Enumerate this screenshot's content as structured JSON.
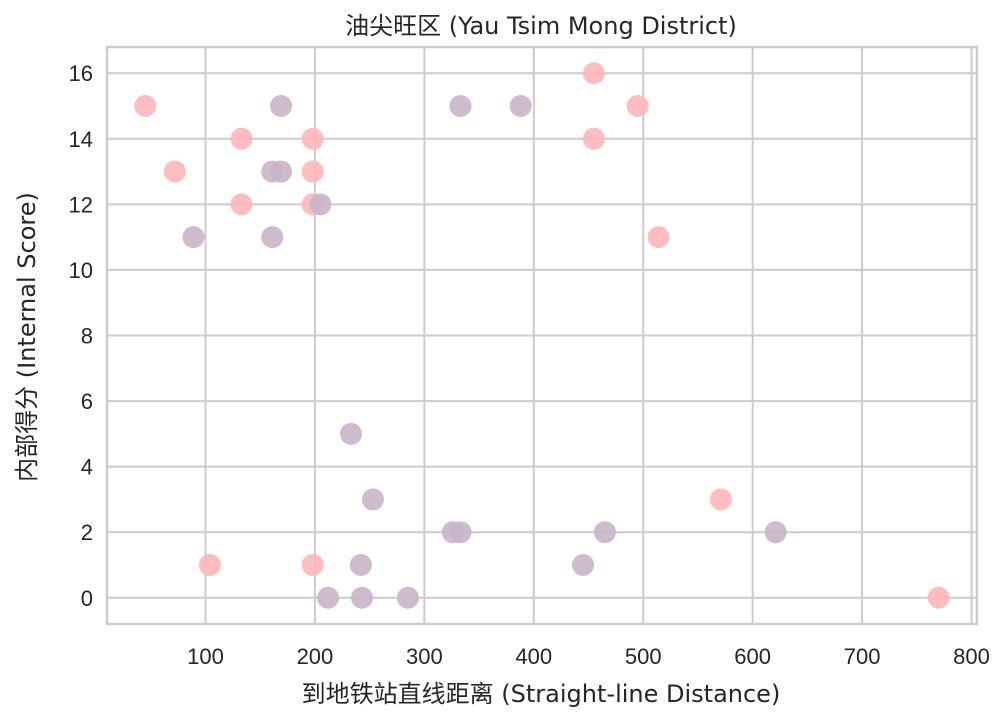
{
  "chart_data": {
    "type": "scatter",
    "title": "油尖旺区 (Yau Tsim Mong District)",
    "xlabel": "到地铁站直线距离 (Straight-line Distance)",
    "ylabel": "内部得分 (Internal Score)",
    "xlim": [
      10,
      805
    ],
    "ylim": [
      -0.8,
      16.8
    ],
    "xticks": [
      100,
      200,
      300,
      400,
      500,
      600,
      700,
      800
    ],
    "yticks": [
      0,
      2,
      4,
      6,
      8,
      10,
      12,
      14,
      16
    ],
    "grid": true,
    "colors": {
      "pink": "#ffb6b9",
      "purple": "#c9b4c9"
    },
    "points": [
      {
        "x": 45,
        "y": 15,
        "color": "pink"
      },
      {
        "x": 72,
        "y": 13,
        "color": "pink"
      },
      {
        "x": 133,
        "y": 14,
        "color": "pink"
      },
      {
        "x": 133,
        "y": 12,
        "color": "pink"
      },
      {
        "x": 198,
        "y": 14,
        "color": "pink"
      },
      {
        "x": 198,
        "y": 13,
        "color": "pink"
      },
      {
        "x": 198,
        "y": 12,
        "color": "pink"
      },
      {
        "x": 104,
        "y": 1,
        "color": "pink"
      },
      {
        "x": 198,
        "y": 1,
        "color": "pink"
      },
      {
        "x": 455,
        "y": 16,
        "color": "pink"
      },
      {
        "x": 455,
        "y": 14,
        "color": "pink"
      },
      {
        "x": 495,
        "y": 15,
        "color": "pink"
      },
      {
        "x": 514,
        "y": 11,
        "color": "pink"
      },
      {
        "x": 571,
        "y": 3,
        "color": "pink"
      },
      {
        "x": 770,
        "y": 0,
        "color": "pink"
      },
      {
        "x": 89,
        "y": 11,
        "color": "purple"
      },
      {
        "x": 161,
        "y": 13,
        "color": "purple"
      },
      {
        "x": 169,
        "y": 13,
        "color": "purple"
      },
      {
        "x": 169,
        "y": 15,
        "color": "purple"
      },
      {
        "x": 161,
        "y": 11,
        "color": "purple"
      },
      {
        "x": 205,
        "y": 12,
        "color": "purple"
      },
      {
        "x": 333,
        "y": 15,
        "color": "purple"
      },
      {
        "x": 388,
        "y": 15,
        "color": "purple"
      },
      {
        "x": 233,
        "y": 5,
        "color": "purple"
      },
      {
        "x": 253,
        "y": 3,
        "color": "purple"
      },
      {
        "x": 326,
        "y": 2,
        "color": "purple"
      },
      {
        "x": 333,
        "y": 2,
        "color": "purple"
      },
      {
        "x": 242,
        "y": 1,
        "color": "purple"
      },
      {
        "x": 212,
        "y": 0,
        "color": "purple"
      },
      {
        "x": 243,
        "y": 0,
        "color": "purple"
      },
      {
        "x": 285,
        "y": 0,
        "color": "purple"
      },
      {
        "x": 445,
        "y": 1,
        "color": "purple"
      },
      {
        "x": 465,
        "y": 2,
        "color": "purple"
      },
      {
        "x": 621,
        "y": 2,
        "color": "purple"
      }
    ]
  }
}
